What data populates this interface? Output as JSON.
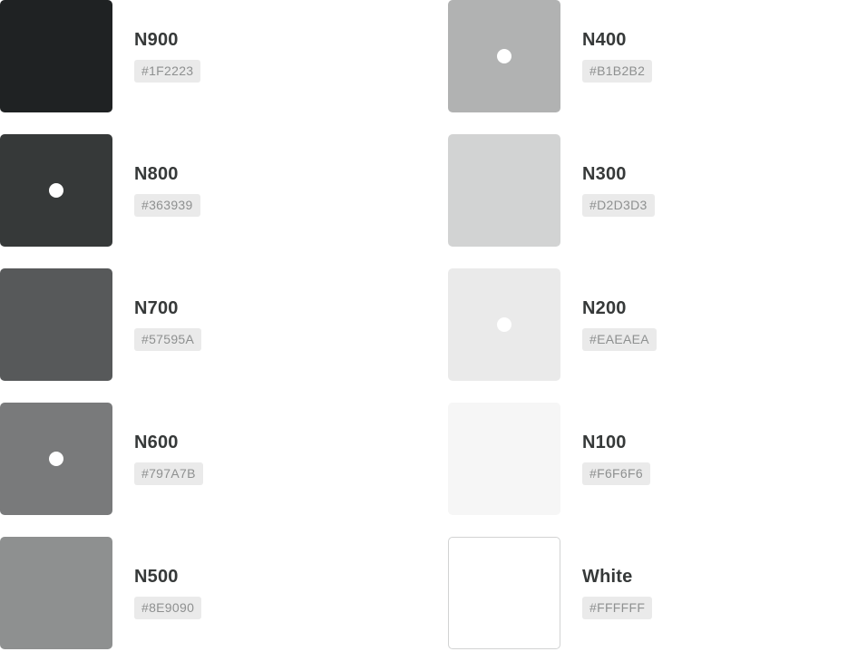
{
  "columns": [
    [
      {
        "name": "N900",
        "hex": "#1F2223",
        "marked": false
      },
      {
        "name": "N800",
        "hex": "#363939",
        "marked": true
      },
      {
        "name": "N700",
        "hex": "#57595A",
        "marked": false
      },
      {
        "name": "N600",
        "hex": "#797A7B",
        "marked": true
      },
      {
        "name": "N500",
        "hex": "#8E9090",
        "marked": false
      }
    ],
    [
      {
        "name": "N400",
        "hex": "#B1B2B2",
        "marked": true
      },
      {
        "name": "N300",
        "hex": "#D2D3D3",
        "marked": false
      },
      {
        "name": "N200",
        "hex": "#EAEAEA",
        "marked": true
      },
      {
        "name": "N100",
        "hex": "#F6F6F6",
        "marked": false
      },
      {
        "name": "White",
        "hex": "#FFFFFF",
        "marked": false
      }
    ]
  ]
}
